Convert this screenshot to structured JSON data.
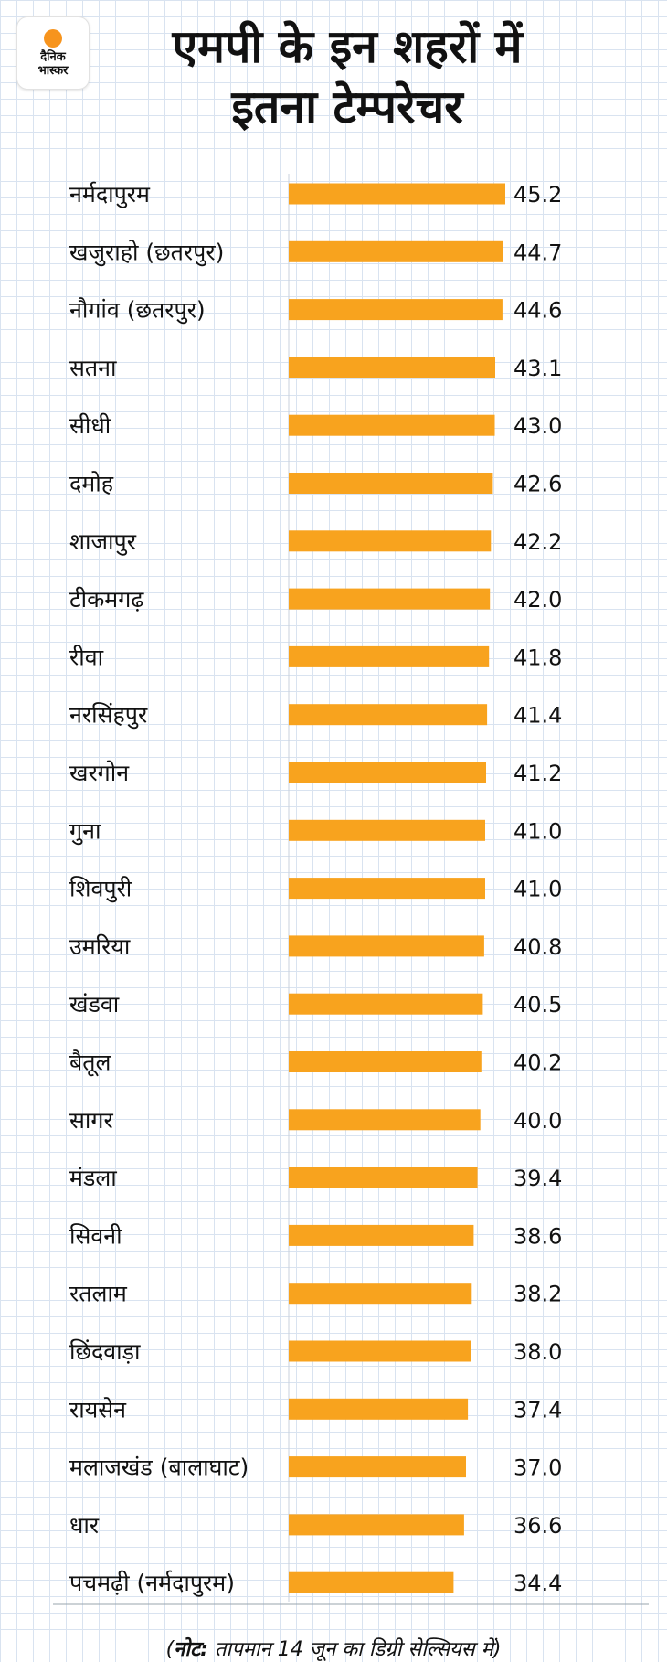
{
  "brand": {
    "line1": "दैनिक",
    "line2": "भास्कर",
    "dot_color": "#f7941d"
  },
  "title": {
    "line1": "एमपी के इन शहरों में",
    "line2": "इतना टेम्परेचर"
  },
  "note": {
    "prefix": "(",
    "label": "नोट:",
    "text": " तापमान 14 जून का डिग्री सेल्सियस में)"
  },
  "chart_data": {
    "type": "bar",
    "orientation": "horizontal",
    "categories": [
      "नर्मदापुरम",
      "खजुराहो (छतरपुर)",
      "नौगांव (छतरपुर)",
      "सतना",
      "सीधी",
      "दमोह",
      "शाजापुर",
      "टीकमगढ़",
      "रीवा",
      "नरसिंहपुर",
      "खरगोन",
      "गुना",
      "शिवपुरी",
      "उमरिया",
      "खंडवा",
      "बैतूल",
      "सागर",
      "मंडला",
      "सिवनी",
      "रतलाम",
      "छिंदवाड़ा",
      "रायसेन",
      "मलाजखंड (बालाघाट)",
      "धार",
      "पचमढ़ी (नर्मदापुरम)"
    ],
    "values": [
      45.2,
      44.7,
      44.6,
      43.1,
      43.0,
      42.6,
      42.2,
      42.0,
      41.8,
      41.4,
      41.2,
      41.0,
      41.0,
      40.8,
      40.5,
      40.2,
      40.0,
      39.4,
      38.6,
      38.2,
      38.0,
      37.4,
      37.0,
      36.6,
      34.4
    ],
    "value_labels": [
      "45.2",
      "44.7",
      "44.6",
      "43.1",
      "43.0",
      "42.6",
      "42.2",
      "42.0",
      "41.8",
      "41.4",
      "41.2",
      "41.0",
      "41.0",
      "40.8",
      "40.5",
      "40.2",
      "40.0",
      "39.4",
      "38.6",
      "38.2",
      "38.0",
      "37.4",
      "37.0",
      "36.6",
      "34.4"
    ],
    "bar_color": "#f8a31e",
    "grid": true
  }
}
